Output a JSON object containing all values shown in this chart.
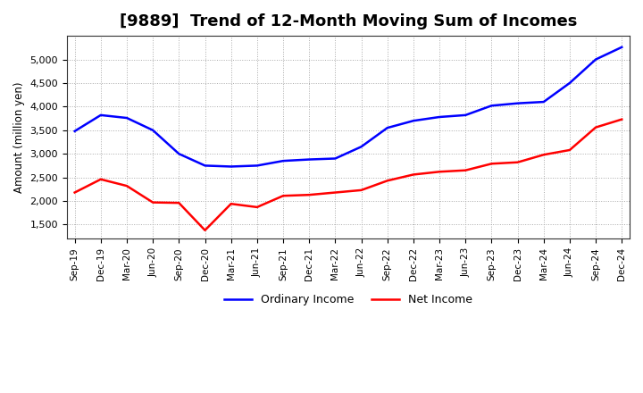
{
  "title": "[9889]  Trend of 12-Month Moving Sum of Incomes",
  "ylabel": "Amount (million yen)",
  "x_labels": [
    "Sep-19",
    "Dec-19",
    "Mar-20",
    "Jun-20",
    "Sep-20",
    "Dec-20",
    "Mar-21",
    "Jun-21",
    "Sep-21",
    "Dec-21",
    "Mar-22",
    "Jun-22",
    "Sep-22",
    "Dec-22",
    "Mar-23",
    "Jun-23",
    "Sep-23",
    "Dec-23",
    "Mar-24",
    "Jun-24",
    "Sep-24",
    "Dec-24"
  ],
  "ordinary_income": [
    3480,
    3820,
    3760,
    3500,
    3000,
    2750,
    2730,
    2750,
    2850,
    2880,
    2900,
    3150,
    3550,
    3700,
    3780,
    3820,
    4020,
    4070,
    4100,
    4500,
    5000,
    5260
  ],
  "net_income": [
    2180,
    2460,
    2320,
    1970,
    1960,
    1380,
    1940,
    1870,
    2110,
    2130,
    2180,
    2230,
    2430,
    2560,
    2620,
    2650,
    2790,
    2820,
    2980,
    3080,
    3560,
    3730
  ],
  "ordinary_color": "#0000ff",
  "net_color": "#ff0000",
  "ylim": [
    1200,
    5500
  ],
  "yticks": [
    1500,
    2000,
    2500,
    3000,
    3500,
    4000,
    4500,
    5000
  ],
  "background_color": "#ffffff",
  "grid_color": "#aaaaaa",
  "title_fontsize": 13,
  "legend_labels": [
    "Ordinary Income",
    "Net Income"
  ]
}
